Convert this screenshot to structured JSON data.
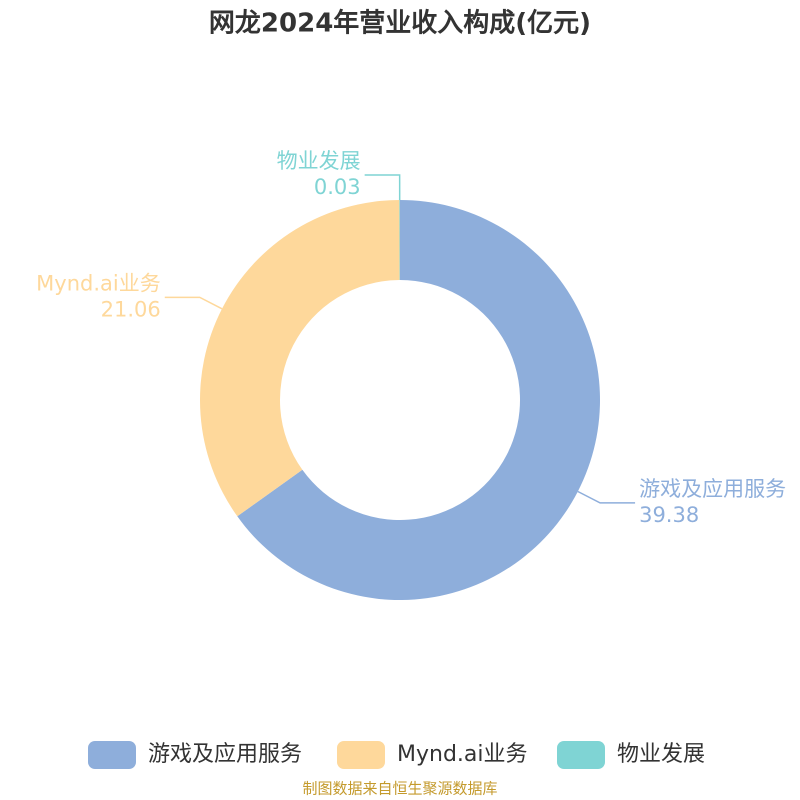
{
  "chart_data": {
    "type": "donut",
    "title": "网龙2024年营业收入构成(亿元)",
    "categories": [
      "游戏及应用服务",
      "Mynd.ai业务",
      "物业发展"
    ],
    "values": [
      39.38,
      21.06,
      0.03
    ],
    "colors": [
      "#8eaedb",
      "#fed89b",
      "#7fd4d4"
    ],
    "legend": "bottom",
    "source": "制图数据来自恒生聚源数据库"
  }
}
